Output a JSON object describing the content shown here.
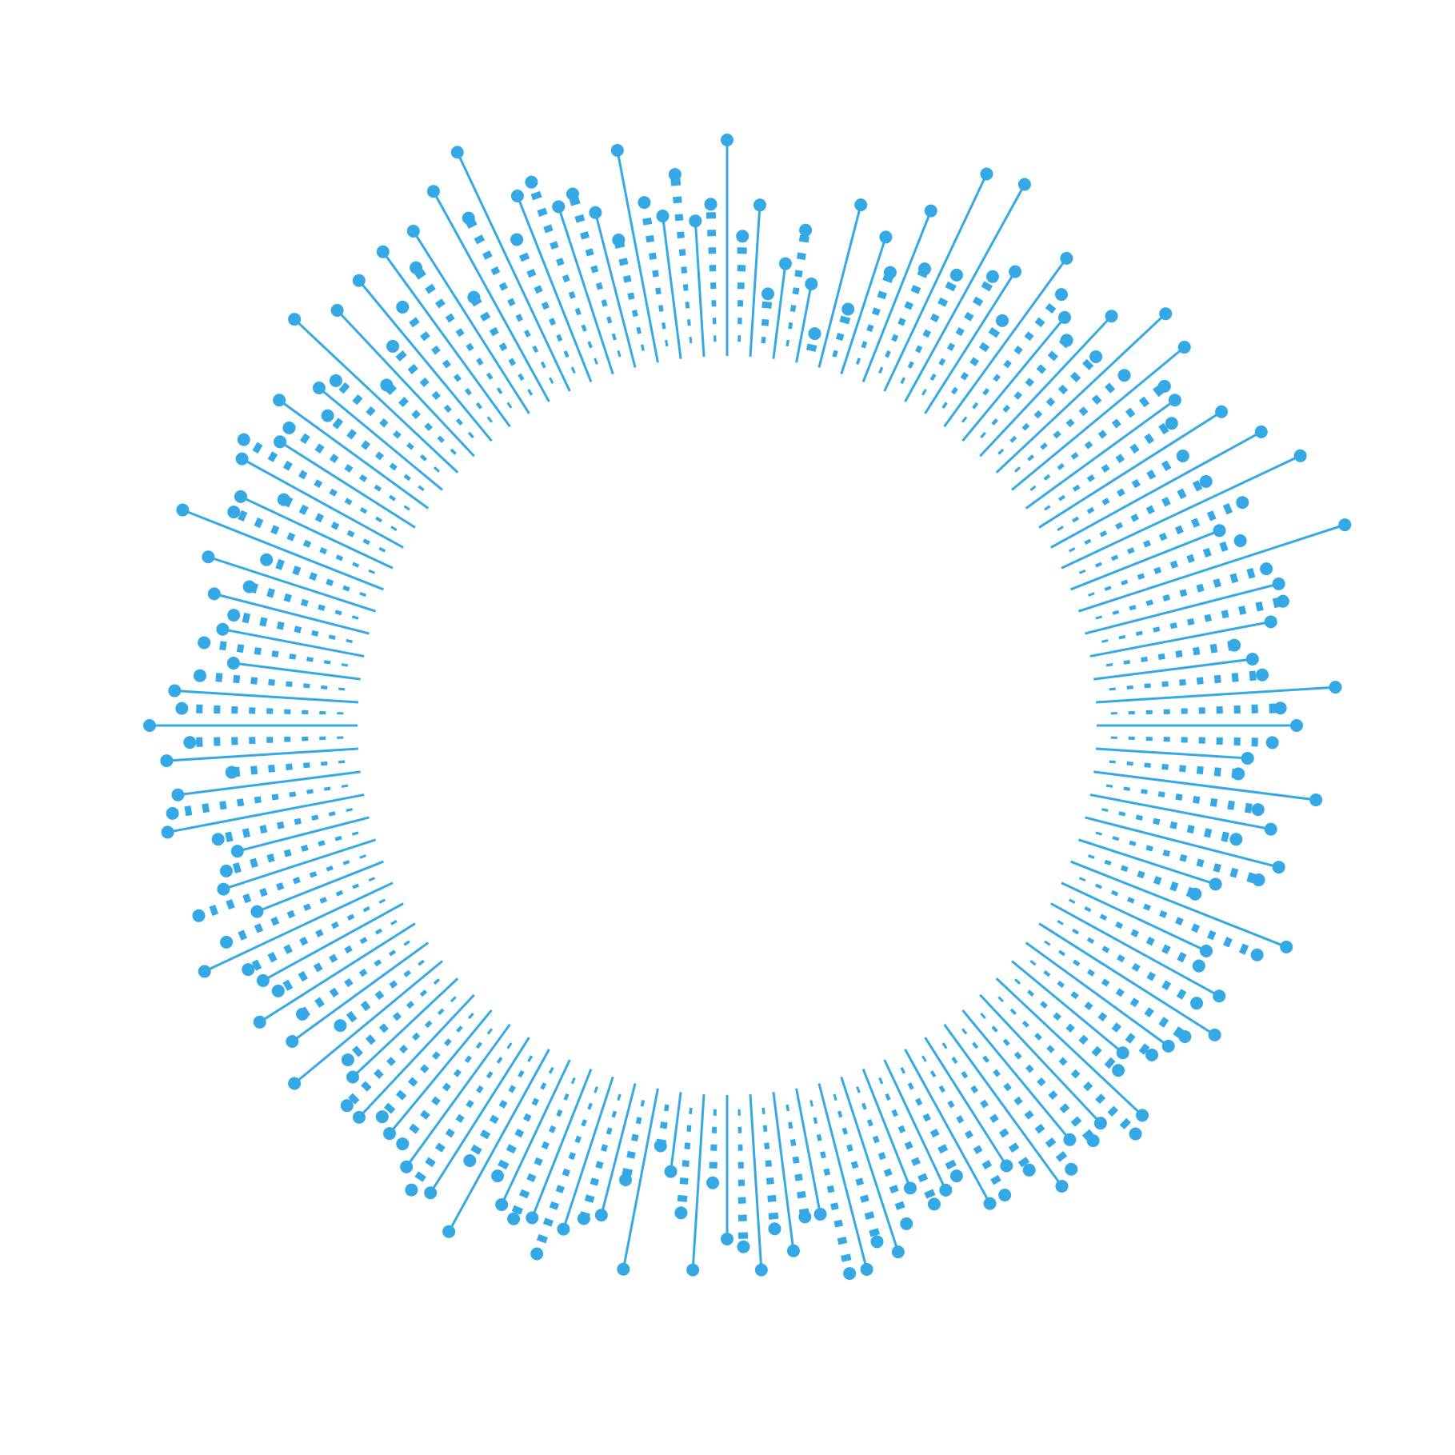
{
  "chart_data": {
    "type": "radial-lollipop",
    "title": "",
    "color": "#35a8e6",
    "spoke_styles": [
      "solid",
      "dashed"
    ],
    "start_angle_deg": 0,
    "direction": "clockwise",
    "values": [
      270,
      150,
      190,
      80,
      120,
      165,
      100,
      40,
      210,
      80,
      180,
      140,
      230,
      160,
      300,
      170,
      310,
      190,
      210,
      150,
      260,
      220,
      200,
      180,
      240,
      190,
      290,
      200,
      280,
      230,
      230,
      210,
      270,
      200,
      300,
      210,
      330,
      240,
      200,
      220,
      350,
      240,
      250,
      250,
      230,
      180,
      200,
      210,
      300,
      230,
      250,
      220,
      190,
      180,
      280,
      210,
      230,
      190,
      250,
      230,
      180,
      160,
      290,
      260,
      200,
      200,
      240,
      220,
      260,
      230,
      220,
      210,
      180,
      190,
      250,
      260,
      220,
      230,
      210,
      240,
      250,
      210,
      190,
      220,
      220,
      170,
      180,
      190,
      160,
      200,
      230,
      210,
      240,
      240,
      160,
      160,
      200,
      170,
      220,
      190,
      180,
      110,
      220,
      150,
      100,
      70,
      230,
      120,
      170,
      180,
      200,
      240,
      200,
      210,
      200,
      170,
      260,
      170,
      230,
      240,
      220,
      200,
      200,
      190,
      210,
      210,
      180,
      170,
      240,
      150,
      210,
      180,
      230,
      190,
      200,
      210,
      260,
      220,
      170,
      240,
      200,
      190,
      170,
      190,
      250,
      240,
      230,
      160,
      240,
      210,
      260,
      220,
      230,
      200,
      160,
      200,
      180,
      170,
      200,
      160,
      220,
      150,
      270,
      210,
      210,
      160,
      230,
      240,
      200,
      200,
      230,
      170,
      200,
      190,
      280,
      140,
      250,
      170,
      260,
      200,
      270,
      230,
      270,
      160,
      300,
      250,
      330,
      200,
      250,
      260,
      220,
      230,
      200,
      160,
      270,
      200,
      180,
      230,
      170,
      190
    ]
  }
}
